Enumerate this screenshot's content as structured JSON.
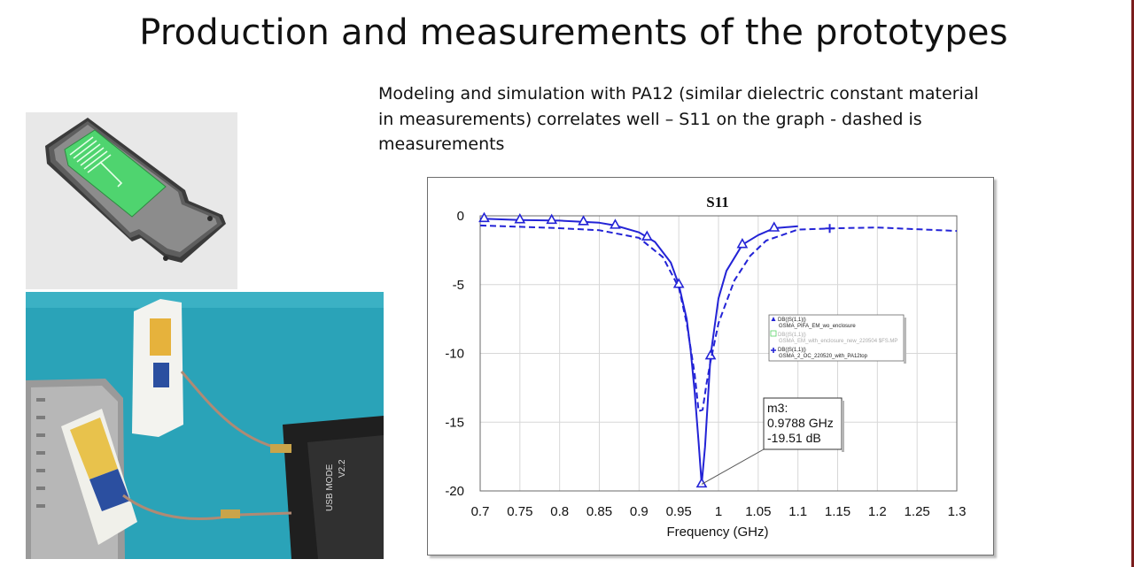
{
  "slide": {
    "title": "Production and measurements of the prototypes",
    "description_lines": [
      "Modeling and simulation with PA12 (similar dielectric constant material",
      "in measurements) correlates well – S11 on the graph  - dashed is",
      "measurements"
    ]
  },
  "images": {
    "cad_render": "antenna-enclosure-3d-model",
    "photo": "prototype-test-setup-photo",
    "photo_device_text": [
      "USB MODE",
      "V2.2"
    ]
  },
  "colors": {
    "trace": "#2323d6",
    "legend_faint": "#58d368"
  },
  "chart_data": {
    "type": "line",
    "title": "S11",
    "xlabel": "Frequency (GHz)",
    "ylabel": "",
    "xlim": [
      0.7,
      1.3
    ],
    "ylim": [
      -20,
      0
    ],
    "x_ticks": [
      0.7,
      0.75,
      0.8,
      0.85,
      0.9,
      0.95,
      1,
      1.05,
      1.1,
      1.15,
      1.2,
      1.25,
      1.3
    ],
    "x_tick_labels": [
      "0.7",
      "0.75",
      "0.8",
      "0.85",
      "0.9",
      "0.95",
      "1",
      "1.05",
      "1.1",
      "1.15",
      "1.2",
      "1.25",
      "1.3"
    ],
    "y_ticks": [
      0,
      -5,
      -10,
      -15,
      -20
    ],
    "y_tick_labels": [
      "0",
      "-5",
      "-10",
      "-15",
      "-20"
    ],
    "grid": true,
    "series": [
      {
        "name": "DB(|S(1,1)|)",
        "legend_sub": "GSMA_PIFA_EM_wo_enclosure",
        "style": "solid",
        "marker": "triangle",
        "x": [
          0.7,
          0.75,
          0.8,
          0.85,
          0.87,
          0.9,
          0.92,
          0.94,
          0.95,
          0.96,
          0.965,
          0.97,
          0.975,
          0.9788,
          0.983,
          0.99,
          1.0,
          1.01,
          1.03,
          1.05,
          1.07,
          1.1
        ],
        "y": [
          -0.2,
          -0.3,
          -0.35,
          -0.5,
          -0.7,
          -1.2,
          -1.9,
          -3.4,
          -5,
          -7.5,
          -9.8,
          -12.8,
          -16.5,
          -19.51,
          -16.8,
          -10.2,
          -6,
          -4,
          -2.1,
          -1.4,
          -0.9,
          -0.75
        ],
        "marker_x": [
          0.705,
          0.75,
          0.79,
          0.83,
          0.87,
          0.91,
          0.95,
          0.99,
          1.03,
          1.07
        ]
      },
      {
        "name": "DB(|S(1,1)|)",
        "legend_sub": "GSMA_EM_with_enclosure_new_220504 $FS.MP",
        "style": "faint",
        "marker": "none",
        "x": [],
        "y": []
      },
      {
        "name": "DB(|S(1,1)|)",
        "legend_sub": "GSMA_2_OC_220520_with_PA12top",
        "style": "dashed",
        "marker": "plus",
        "x": [
          0.7,
          0.75,
          0.8,
          0.85,
          0.9,
          0.93,
          0.95,
          0.96,
          0.97,
          0.975,
          0.98,
          0.985,
          0.99,
          1.0,
          1.02,
          1.04,
          1.06,
          1.1,
          1.15,
          1.2,
          1.3
        ],
        "y": [
          -0.7,
          -0.8,
          -0.9,
          -1.05,
          -1.6,
          -3,
          -5.2,
          -7.8,
          -11.5,
          -14.2,
          -14.1,
          -12.2,
          -10.6,
          -7.8,
          -4.7,
          -2.9,
          -1.8,
          -1,
          -0.9,
          -0.85,
          -1.1
        ],
        "marker_x": [
          1.14
        ]
      }
    ],
    "marker_annotation": {
      "label": "m3:",
      "x_text": "0.9788 GHz",
      "y_text": "-19.51 dB",
      "x": 0.9788,
      "y": -19.51
    }
  }
}
